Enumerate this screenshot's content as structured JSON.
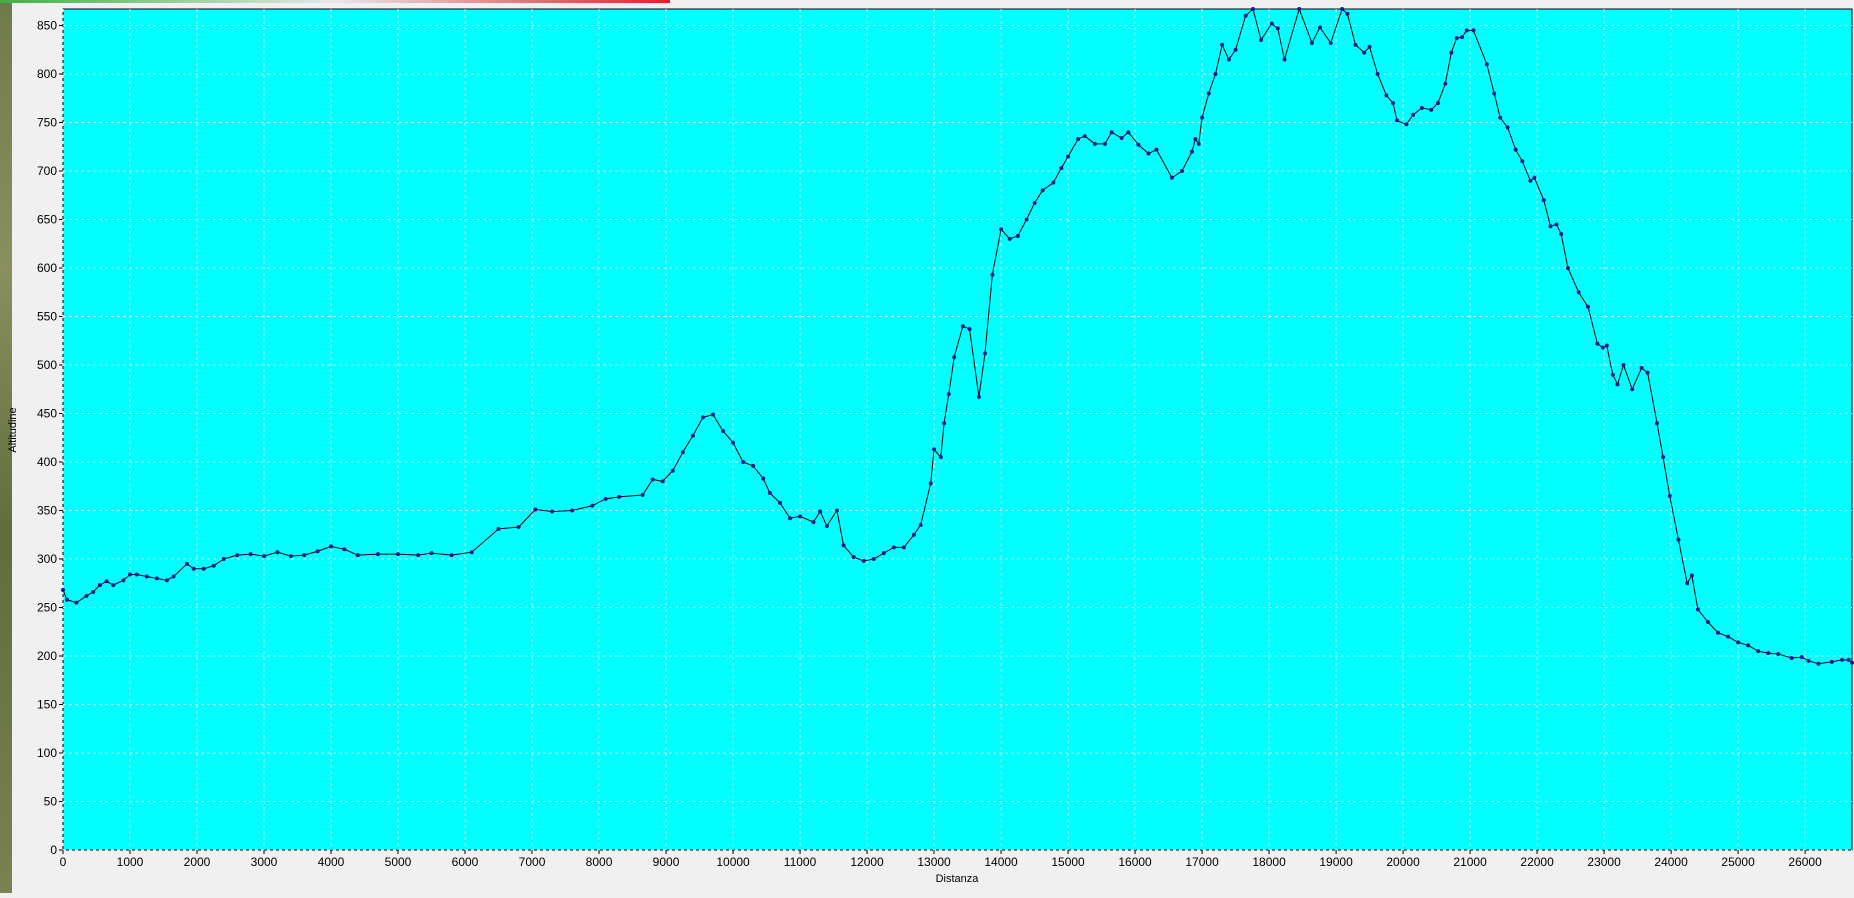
{
  "chart_data": {
    "type": "line",
    "x_label": "Distanza",
    "y_label": "Altitudine",
    "xlim": [
      0,
      26700
    ],
    "ylim": [
      0,
      867
    ],
    "xticks": [
      0,
      1000,
      2000,
      3000,
      4000,
      5000,
      6000,
      7000,
      8000,
      9000,
      10000,
      11000,
      12000,
      13000,
      14000,
      15000,
      16000,
      17000,
      18000,
      19000,
      20000,
      21000,
      22000,
      23000,
      24000,
      25000,
      26000
    ],
    "yticks": [
      0,
      50,
      100,
      150,
      200,
      250,
      300,
      350,
      400,
      450,
      500,
      550,
      600,
      650,
      700,
      750,
      800,
      850
    ],
    "grid": true,
    "background": "#00ffff",
    "series": [
      {
        "color": "#000000",
        "marker_color": "#1a1a8c",
        "x": [
          0,
          60,
          200,
          350,
          450,
          550,
          650,
          750,
          900,
          1000,
          1100,
          1250,
          1400,
          1550,
          1650,
          1850,
          1950,
          2100,
          2250,
          2400,
          2600,
          2800,
          3000,
          3200,
          3400,
          3600,
          3800,
          4000,
          4200,
          4400,
          4700,
          5000,
          5300,
          5500,
          5800,
          6100,
          6500,
          6800,
          7050,
          7300,
          7600,
          7900,
          8100,
          8300,
          8650,
          8800,
          8950,
          9100,
          9250,
          9400,
          9550,
          9700,
          9850,
          10000,
          10150,
          10300,
          10450,
          10550,
          10700,
          10850,
          11000,
          11200,
          11300,
          11400,
          11550,
          11650,
          11800,
          11950,
          12100,
          12250,
          12400,
          12550,
          12700,
          12800,
          12950,
          13000,
          13100,
          13150,
          13220,
          13300,
          13430,
          13530,
          13670,
          13760,
          13870,
          14000,
          14130,
          14250,
          14380,
          14500,
          14620,
          14780,
          14900,
          15000,
          15150,
          15250,
          15400,
          15550,
          15650,
          15800,
          15900,
          16050,
          16200,
          16320,
          16550,
          16700,
          16850,
          16900,
          16950,
          17000,
          17100,
          17200,
          17300,
          17400,
          17500,
          17650,
          17760,
          17880,
          18040,
          18130,
          18230,
          18450,
          18640,
          18760,
          18920,
          19090,
          19170,
          19290,
          19420,
          19500,
          19620,
          19750,
          19850,
          19910,
          20050,
          20150,
          20280,
          20420,
          20520,
          20630,
          20720,
          20800,
          20880,
          20950,
          21050,
          21250,
          21360,
          21450,
          21560,
          21680,
          21780,
          21900,
          21960,
          22100,
          22200,
          22290,
          22360,
          22460,
          22620,
          22760,
          22900,
          22980,
          23040,
          23130,
          23200,
          23290,
          23420,
          23560,
          23650,
          23790,
          23880,
          23980,
          24110,
          24240,
          24310,
          24400,
          24550,
          24700,
          24850,
          25000,
          25150,
          25300,
          25450,
          25600,
          25800,
          25950,
          26050,
          26200,
          26400,
          26550,
          26650,
          26700
        ],
        "values": [
          268,
          258,
          255,
          262,
          266,
          273,
          277,
          273,
          278,
          284,
          284,
          282,
          280,
          278,
          282,
          295,
          290,
          290,
          293,
          300,
          304,
          305,
          303,
          307,
          303,
          304,
          308,
          313,
          310,
          304,
          305,
          305,
          304,
          306,
          304,
          307,
          331,
          333,
          351,
          349,
          350,
          355,
          362,
          364,
          366,
          382,
          380,
          391,
          410,
          427,
          446,
          449,
          432,
          420,
          400,
          396,
          383,
          368,
          358,
          342,
          344,
          338,
          349,
          334,
          350,
          314,
          302,
          298,
          300,
          306,
          312,
          312,
          325,
          335,
          378,
          413,
          405,
          440,
          470,
          508,
          540,
          537,
          467,
          512,
          593,
          640,
          630,
          633,
          650,
          667,
          680,
          688,
          703,
          715,
          733,
          736,
          728,
          728,
          740,
          734,
          740,
          727,
          718,
          722,
          693,
          700,
          720,
          733,
          728,
          755,
          780,
          800,
          830,
          815,
          825,
          860,
          867,
          835,
          852,
          847,
          815,
          867,
          832,
          848,
          832,
          867,
          862,
          830,
          822,
          828,
          800,
          778,
          770,
          752,
          748,
          758,
          765,
          763,
          770,
          790,
          822,
          837,
          838,
          845,
          845,
          810,
          780,
          755,
          745,
          722,
          710,
          690,
          693,
          670,
          643,
          645,
          635,
          600,
          575,
          560,
          522,
          518,
          520,
          490,
          480,
          500,
          475,
          497,
          492,
          440,
          405,
          365,
          320,
          275,
          283,
          248,
          235,
          224,
          220,
          214,
          211,
          205,
          203,
          202,
          198,
          199,
          195,
          192,
          194,
          196,
          196,
          193
        ]
      }
    ]
  }
}
